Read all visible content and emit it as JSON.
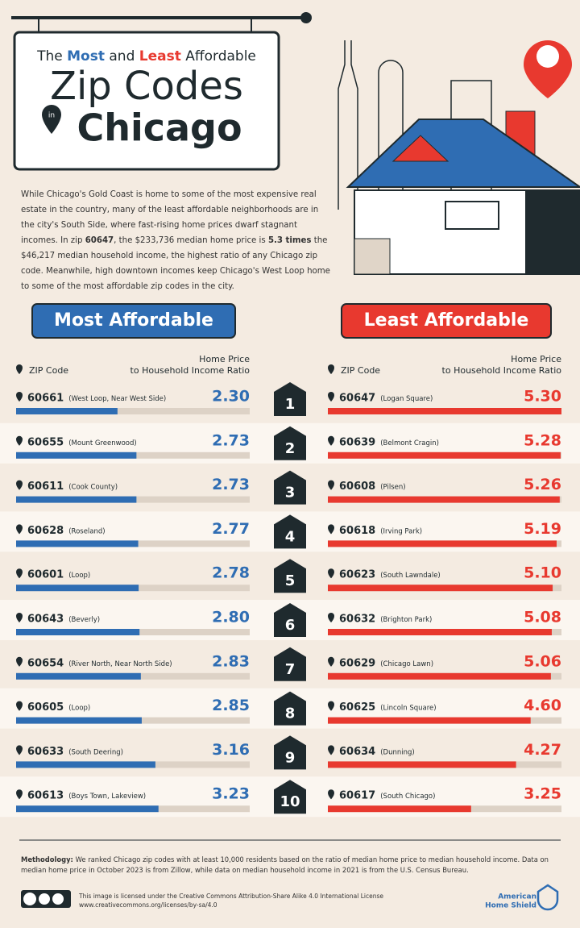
{
  "header": {
    "title_parts": [
      "The",
      "Most",
      "and",
      "Least",
      "Affordable"
    ],
    "title_main": "Zip Codes",
    "title_in": "in",
    "title_city": "Chicago"
  },
  "intro": [
    "While Chicago's Gold Coast is home to some of the most expensive real estate in the country, many of the least affordable neighborhoods are in the city's South Side, where fast-rising home prices dwarf stagnant incomes. In zip ",
    "60647",
    ", the $233,736 median home price is ",
    "5.3 times",
    " the $46,217 median household income, the highest ratio of any Chicago zip code. Meanwhile, high downtown incomes keep Chicago's West Loop home to some of the most affordable zip codes in the city."
  ],
  "ranks": [
    "1",
    "2",
    "3",
    "4",
    "5",
    "6",
    "7",
    "8",
    "9",
    "10"
  ],
  "chart_data": [
    {
      "type": "bar",
      "orientation": "horizontal",
      "title": "Most Affordable",
      "category_header": "ZIP Code",
      "value_header": "Home Price to Household Income Ratio",
      "color": "#2f6db3",
      "categories": [
        "60661",
        "60655",
        "60611",
        "60628",
        "60601",
        "60643",
        "60654",
        "60605",
        "60633",
        "60613"
      ],
      "neighborhoods": [
        "(West Loop, Near West Side)",
        "(Mount Greenwood)",
        "(Cook County)",
        "(Roseland)",
        "(Loop)",
        "(Beverly)",
        "(River North, Near North Side)",
        "(Loop)",
        "(South Deering)",
        "(Boys Town, Lakeview)"
      ],
      "values": [
        2.3,
        2.73,
        2.73,
        2.77,
        2.78,
        2.8,
        2.83,
        2.85,
        3.16,
        3.23
      ],
      "value_labels": [
        "2.30",
        "2.73",
        "2.73",
        "2.77",
        "2.78",
        "2.80",
        "2.83",
        "2.85",
        "3.16",
        "3.23"
      ],
      "xlim": [
        0,
        5.3
      ]
    },
    {
      "type": "bar",
      "orientation": "horizontal",
      "title": "Least Affordable",
      "category_header": "ZIP Code",
      "value_header": "Home Price to Household Income Ratio",
      "color": "#e8392f",
      "categories": [
        "60647",
        "60639",
        "60608",
        "60618",
        "60623",
        "60632",
        "60629",
        "60625",
        "60634",
        "60617"
      ],
      "neighborhoods": [
        "(Logan Square)",
        "(Belmont Cragin)",
        "(Pilsen)",
        "(Irving Park)",
        "(South Lawndale)",
        "(Brighton Park)",
        "(Chicago Lawn)",
        "(Lincoln Square)",
        "(Dunning)",
        "(South Chicago)"
      ],
      "values": [
        5.3,
        5.28,
        5.26,
        5.19,
        5.1,
        5.08,
        5.06,
        4.6,
        4.27,
        3.25
      ],
      "value_labels": [
        "5.30",
        "5.28",
        "5.26",
        "5.19",
        "5.10",
        "5.08",
        "5.06",
        "4.60",
        "4.27",
        "3.25"
      ],
      "xlim": [
        0,
        5.3
      ]
    }
  ],
  "footer": {
    "methodology_label": "Methodology:",
    "methodology": "We ranked Chicago zip codes with at least 10,000 residents based on the ratio of median home price to median household income. Data on median home price in October 2023 is from Zillow, while data on median household income in 2021 is from the U.S. Census Bureau.",
    "license": "This image is licensed under the Creative Commons Attribution-Share Alike 4.0 International License",
    "license_url": "www.creativecommons.org/licenses/by-sa/4.0",
    "logo_line1": "American",
    "logo_line2": "Home Shield"
  }
}
